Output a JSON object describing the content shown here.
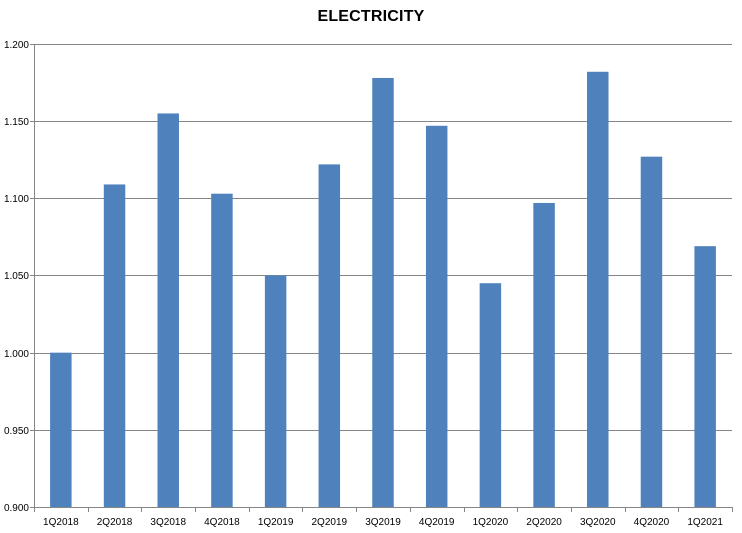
{
  "chart_data": {
    "type": "bar",
    "title": "ELECTRICITY",
    "xlabel": "",
    "ylabel": "",
    "categories": [
      "1Q2018",
      "2Q2018",
      "3Q2018",
      "4Q2018",
      "1Q2019",
      "2Q2019",
      "3Q2019",
      "4Q2019",
      "1Q2020",
      "2Q2020",
      "3Q2020",
      "4Q2020",
      "1Q2021"
    ],
    "values": [
      1.0,
      1.109,
      1.155,
      1.103,
      1.05,
      1.122,
      1.178,
      1.147,
      1.045,
      1.097,
      1.182,
      1.127,
      1.069
    ],
    "ylim": [
      0.9,
      1.2
    ],
    "yticks": [
      "0.900",
      "0.950",
      "1.000",
      "1.050",
      "1.100",
      "1.150",
      "1.200"
    ],
    "grid": true,
    "legend": "none",
    "bar_color": "#4F81BD",
    "grid_color": "#868686",
    "axis_color": "#868686"
  }
}
